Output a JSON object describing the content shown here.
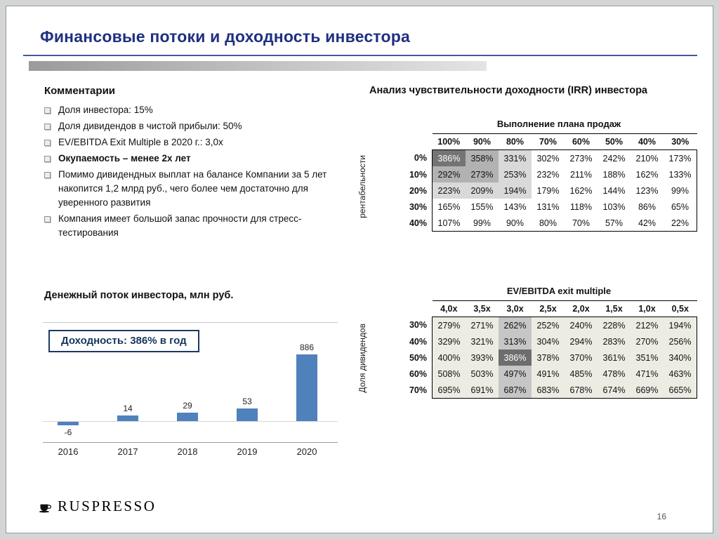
{
  "slide": {
    "title": "Финансовые потоки и доходность инвестора",
    "page_number": "16",
    "logo_text": "RUSPRESSO"
  },
  "comments": {
    "heading": "Комментарии",
    "items": [
      {
        "text": "Доля инвестора: 15%",
        "bold": false
      },
      {
        "text": "Доля дивидендов в чистой прибыли: 50%",
        "bold": false
      },
      {
        "text": "EV/EBITDA Exit Multiple в 2020 г.: 3,0x",
        "bold": false
      },
      {
        "text": "Окупаемость – менее 2х лет",
        "bold": true
      },
      {
        "text": "Помимо дивидендных выплат на балансе Компании за 5 лет накопится 1,2 млрд руб., чего более чем достаточно для уверенного развития",
        "bold": false
      },
      {
        "text": "Компания имеет большой запас прочности для стресс-тестирования",
        "bold": false
      }
    ]
  },
  "sensitivity": {
    "heading": "Анализ чувствительности доходности (IRR) инвестора"
  },
  "chart_data": [
    {
      "type": "bar",
      "title": "Денежный поток инвестора, млн руб.",
      "annotation": "Доходность: 386% в год",
      "categories": [
        "2016",
        "2017",
        "2018",
        "2019",
        "2020"
      ],
      "values": [
        -6,
        14,
        29,
        53,
        886
      ],
      "bar_color": "#4f81bd",
      "ylim": [
        -50,
        950
      ],
      "legend": "none",
      "grid": "off"
    },
    {
      "type": "heatmap",
      "caption": "Выполнение плана продаж",
      "side_label": "рентабельности",
      "unit": "%",
      "columns": [
        "100%",
        "90%",
        "80%",
        "70%",
        "60%",
        "50%",
        "40%",
        "30%"
      ],
      "row_labels": [
        "0%",
        "10%",
        "20%",
        "30%",
        "40%"
      ],
      "values": [
        [
          386,
          358,
          331,
          302,
          273,
          242,
          210,
          173
        ],
        [
          292,
          273,
          253,
          232,
          211,
          188,
          162,
          133
        ],
        [
          223,
          209,
          194,
          179,
          162,
          144,
          123,
          99
        ],
        [
          165,
          155,
          143,
          131,
          118,
          103,
          86,
          65
        ],
        [
          107,
          99,
          90,
          80,
          70,
          57,
          42,
          22
        ]
      ],
      "shades": [
        [
          3,
          2,
          1,
          0,
          0,
          0,
          0,
          0
        ],
        [
          2,
          2,
          1,
          0,
          0,
          0,
          0,
          0
        ],
        [
          1,
          1,
          1,
          0,
          0,
          0,
          0,
          0
        ],
        [
          0,
          0,
          0,
          0,
          0,
          0,
          0,
          0
        ],
        [
          0,
          0,
          0,
          0,
          0,
          0,
          0,
          0
        ]
      ],
      "shade_colors": {
        "s1": "#d9d9d9",
        "s2": "#b2b2b2",
        "s3": "#747474"
      }
    },
    {
      "type": "heatmap",
      "caption": "EV/EBITDA exit multiple",
      "side_label": "Доля дивидендов",
      "unit": "%",
      "columns": [
        "4,0x",
        "3,5x",
        "3,0x",
        "2,5x",
        "2,0x",
        "1,5x",
        "1,0x",
        "0,5x"
      ],
      "row_labels": [
        "30%",
        "40%",
        "50%",
        "60%",
        "70%"
      ],
      "values": [
        [
          279,
          271,
          262,
          252,
          240,
          228,
          212,
          194
        ],
        [
          329,
          321,
          313,
          304,
          294,
          283,
          270,
          256
        ],
        [
          400,
          393,
          386,
          378,
          370,
          361,
          351,
          340
        ],
        [
          508,
          503,
          497,
          491,
          485,
          478,
          471,
          463
        ],
        [
          695,
          691,
          687,
          683,
          678,
          674,
          669,
          665
        ]
      ],
      "shades": [
        [
          1,
          1,
          2,
          1,
          1,
          1,
          1,
          1
        ],
        [
          1,
          1,
          2,
          1,
          1,
          1,
          1,
          1
        ],
        [
          1,
          1,
          3,
          1,
          1,
          1,
          1,
          1
        ],
        [
          1,
          1,
          2,
          1,
          1,
          1,
          1,
          1
        ],
        [
          1,
          1,
          2,
          1,
          1,
          1,
          1,
          1
        ]
      ],
      "shade_colors": {
        "s1": "#edece3",
        "s2": "#c6c6c6",
        "s3": "#6d6d6d"
      }
    }
  ]
}
